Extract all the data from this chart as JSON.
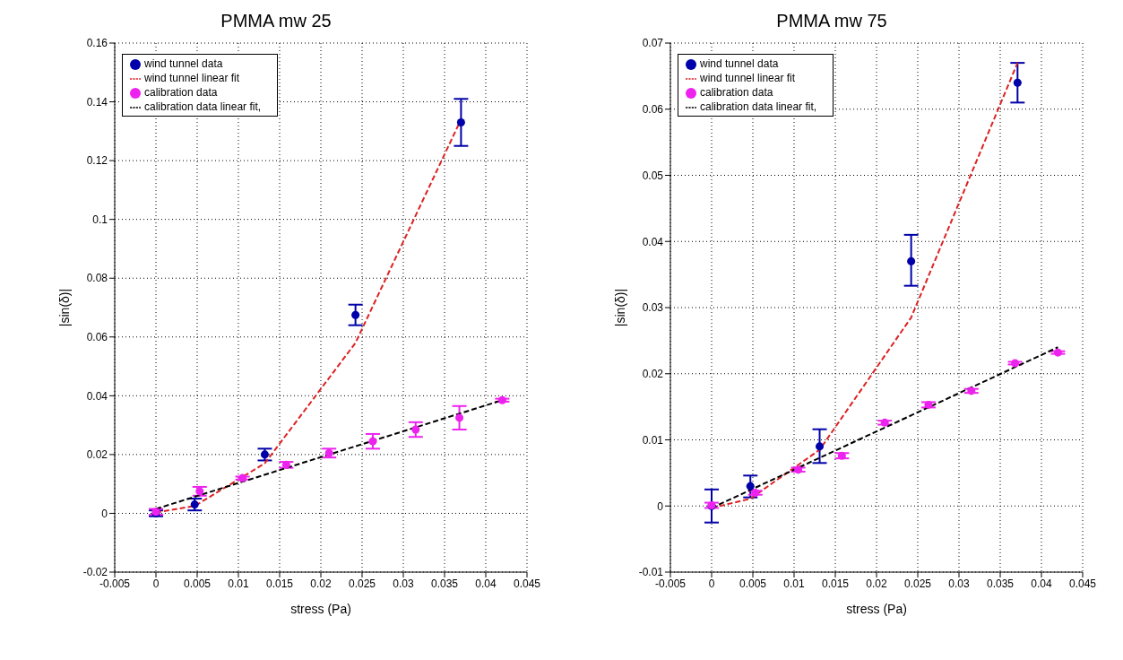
{
  "chart_data": [
    {
      "type": "scatter",
      "title": "PMMA mw 25",
      "xlabel": "stress (Pa)",
      "ylabel": "|sin(δ)|",
      "xlim": [
        -0.005,
        0.045
      ],
      "xticks": [
        -0.005,
        0,
        0.005,
        0.01,
        0.015,
        0.02,
        0.025,
        0.03,
        0.035,
        0.04,
        0.045
      ],
      "ylim": [
        -0.02,
        0.16
      ],
      "yticks": [
        -0.02,
        0,
        0.02,
        0.04,
        0.06,
        0.08,
        0.1,
        0.12,
        0.14,
        0.16
      ],
      "grid": true,
      "legend": "top left",
      "series": [
        {
          "name": "wind tunnel data",
          "type": "scatter",
          "marker": "circle",
          "color": "#0000aa",
          "x": [
            0,
            0.0047,
            0.0132,
            0.0242,
            0.037
          ],
          "values": [
            0,
            0.003,
            0.02,
            0.0675,
            0.133
          ],
          "errors": [
            0.001,
            0.002,
            0.002,
            0.0035,
            [
              0.125,
              0.141
            ]
          ]
        },
        {
          "name": "wind tunnel linear fit",
          "type": "line",
          "marker": "none",
          "line_style": "dashed",
          "color": "#dd2222",
          "x": [
            0,
            0.0047,
            0.0132,
            0.0242,
            0.037
          ],
          "values": [
            0.0003,
            0.0025,
            0.017,
            0.058,
            0.134
          ]
        },
        {
          "name": "calibration data",
          "type": "scatter",
          "marker": "circle",
          "color": "#ee22ee",
          "x": [
            0,
            0.0053,
            0.0105,
            0.0158,
            0.021,
            0.0263,
            0.0315,
            0.0368,
            0.042
          ],
          "values": [
            0.0005,
            0.0075,
            0.012,
            0.0165,
            0.0205,
            0.0245,
            0.0285,
            0.0325,
            0.0385
          ],
          "errors": [
            0.001,
            0.0015,
            0.0005,
            0.001,
            0.0015,
            0.0025,
            0.0025,
            0.004,
            0.0005
          ]
        },
        {
          "name": "calibration data linear fit,",
          "type": "line",
          "marker": "none",
          "line_style": "dashed",
          "color": "#000000",
          "x": [
            0,
            0.042
          ],
          "values": [
            0.0015,
            0.0385
          ]
        }
      ]
    },
    {
      "type": "scatter",
      "title": "PMMA mw 75",
      "xlabel": "stress (Pa)",
      "ylabel": "|sin(δ)|",
      "xlim": [
        -0.005,
        0.045
      ],
      "xticks": [
        -0.005,
        0,
        0.005,
        0.01,
        0.015,
        0.02,
        0.025,
        0.03,
        0.035,
        0.04,
        0.045
      ],
      "ylim": [
        -0.01,
        0.07
      ],
      "yticks": [
        -0.01,
        0,
        0.01,
        0.02,
        0.03,
        0.04,
        0.05,
        0.06,
        0.07
      ],
      "grid": true,
      "legend": "top left",
      "series": [
        {
          "name": "wind tunnel data",
          "type": "scatter",
          "marker": "circle",
          "color": "#0000aa",
          "x": [
            0,
            0.0047,
            0.0131,
            0.0242,
            0.0371
          ],
          "values": [
            0,
            0.003,
            0.009,
            0.037,
            0.064
          ],
          "errors": [
            0.0025,
            [
              0.0013,
              0.0046
            ],
            [
              0.0065,
              0.0116
            ],
            [
              0.0333,
              0.041
            ],
            [
              0.061,
              0.067
            ]
          ]
        },
        {
          "name": "wind tunnel linear fit",
          "type": "line",
          "marker": "none",
          "line_style": "dashed",
          "color": "#dd2222",
          "x": [
            0,
            0.0047,
            0.0131,
            0.0242,
            0.0371
          ],
          "values": [
            -0.0003,
            0.0011,
            0.0085,
            0.0285,
            0.067
          ]
        },
        {
          "name": "calibration data",
          "type": "scatter",
          "marker": "circle",
          "color": "#ee22ee",
          "x": [
            0,
            0.0053,
            0.0105,
            0.0158,
            0.021,
            0.0263,
            0.0315,
            0.0368,
            0.042
          ],
          "values": [
            0.0001,
            0.002,
            0.0055,
            0.0076,
            0.0126,
            0.0153,
            0.0174,
            0.0216,
            0.0232
          ],
          "errors": [
            0.0004,
            0.0003,
            0.0003,
            0.0004,
            0.0003,
            0.0004,
            0.0003,
            0.0002,
            0.0002
          ]
        },
        {
          "name": "calibration data linear fit,",
          "type": "line",
          "marker": "none",
          "line_style": "dashed",
          "color": "#000000",
          "x": [
            0,
            0.042
          ],
          "values": [
            -0.0003,
            0.024
          ]
        }
      ]
    }
  ]
}
